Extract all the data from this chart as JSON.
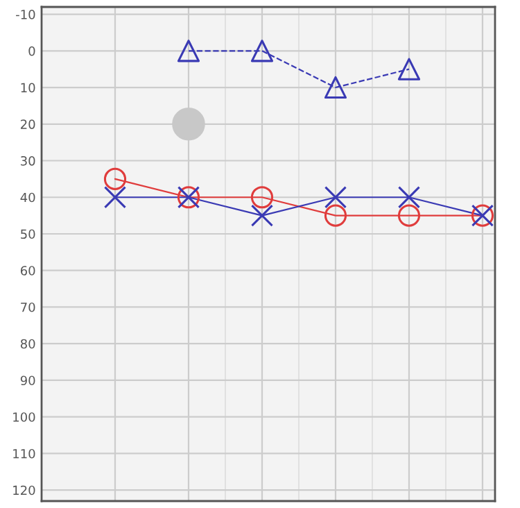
{
  "chart_data": {
    "type": "line",
    "categories": [
      null,
      null,
      null,
      null,
      null,
      null
    ],
    "series": [
      {
        "color": "#e03c3c",
        "values": [
          35,
          40,
          40,
          45,
          45,
          45
        ],
        "marker": "circle",
        "line_style": "solid"
      },
      {
        "color": "#3a3ab4",
        "values": [
          40,
          40,
          45,
          40,
          40,
          45
        ],
        "marker": "cross",
        "line_style": "solid"
      },
      {
        "color": "#3a3ab4",
        "values": [
          null,
          0,
          0,
          10,
          5,
          null
        ],
        "marker": "triangle",
        "line_style": "dashed"
      },
      {
        "type": "scatter",
        "color": "#c8c8c8",
        "values": [
          null,
          20,
          null,
          null,
          null,
          null
        ],
        "marker": "circle"
      }
    ],
    "ylim": [
      123,
      -12
    ],
    "yticks": [
      -10,
      0,
      10,
      20,
      30,
      40,
      50,
      60,
      70,
      80,
      90,
      100,
      110,
      120
    ],
    "grid": true,
    "tick_labels": "y"
  }
}
